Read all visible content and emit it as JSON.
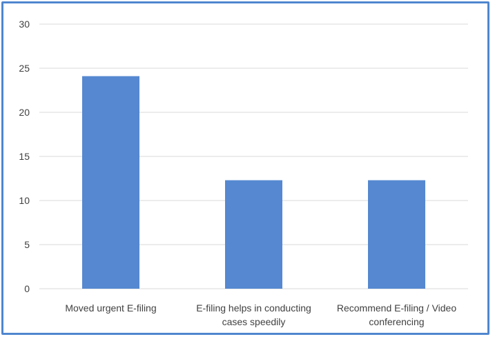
{
  "chart_data": {
    "type": "bar",
    "categories": [
      [
        "Moved urgent E-filing"
      ],
      [
        "E-filing helps in conducting",
        "cases speedily"
      ],
      [
        "Recommend E-filing / Video",
        "conferencing"
      ]
    ],
    "values": [
      24.1,
      12.3,
      12.3
    ],
    "yticks": [
      "0",
      "5",
      "10",
      "15",
      "20",
      "25",
      "30"
    ],
    "ylim": [
      0,
      30
    ],
    "grid": true,
    "bar_color": "#5588d0",
    "grid_color": "#d9d9d9",
    "frame_color": "#4f86cf"
  }
}
